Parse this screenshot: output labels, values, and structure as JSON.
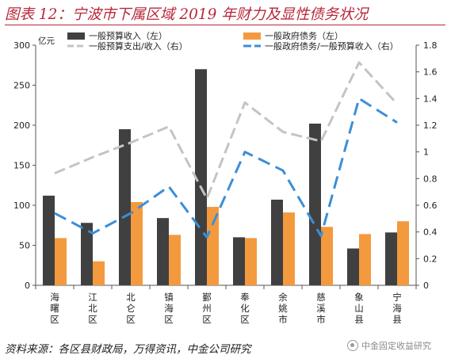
{
  "page": {
    "title": "图表 12：宁波市下属区域 2019 年财力及显性债务状况",
    "source": "资料来源：各区县财政局，万得资讯，中金公司研究",
    "watermark": "中金固定收益研究",
    "watermark_icon": "wechat-logo-icon",
    "title_color": "#b8273a"
  },
  "chart_data": {
    "type": "bar",
    "left_axis_unit": "亿元",
    "categories": [
      "海曙区",
      "江北区",
      "北仑区",
      "镇海区",
      "鄞州区",
      "奉化区",
      "余姚市",
      "慈溪市",
      "象山县",
      "宁海县"
    ],
    "ylim_left": [
      0,
      300
    ],
    "yticks_left": [
      "0",
      "50",
      "100",
      "150",
      "200",
      "250",
      "300"
    ],
    "ylim_right": [
      0,
      1.8
    ],
    "yticks_right": [
      "0",
      "0.2",
      "0.4",
      "0.6",
      "0.8",
      "1",
      "1.2",
      "1.4",
      "1.6",
      "1.8"
    ],
    "legend_placement": "top",
    "grid": false,
    "series": [
      {
        "name": "一般预算收入（左）",
        "kind": "bar",
        "axis": "left",
        "color": "#404040",
        "values": [
          112,
          78,
          195,
          84,
          270,
          60,
          107,
          202,
          46,
          66
        ]
      },
      {
        "name": "一般政府债务（左）",
        "kind": "bar",
        "axis": "left",
        "color": "#f39a3e",
        "values": [
          59,
          30,
          104,
          63,
          98,
          59,
          91,
          73,
          64,
          80
        ]
      },
      {
        "name": "一般预算支出/收入（右）",
        "kind": "line",
        "style": "dashed",
        "axis": "right",
        "color": "#c4c4c4",
        "values": [
          0.84,
          0.96,
          1.07,
          1.19,
          0.65,
          1.37,
          1.15,
          1.08,
          1.67,
          1.36
        ]
      },
      {
        "name": "一般政府债务/一般预算收入（右）",
        "kind": "line",
        "style": "dashed",
        "axis": "right",
        "color": "#3c8ed8",
        "values": [
          0.54,
          0.39,
          0.54,
          0.74,
          0.36,
          1.0,
          0.86,
          0.37,
          1.4,
          1.22
        ]
      }
    ]
  }
}
